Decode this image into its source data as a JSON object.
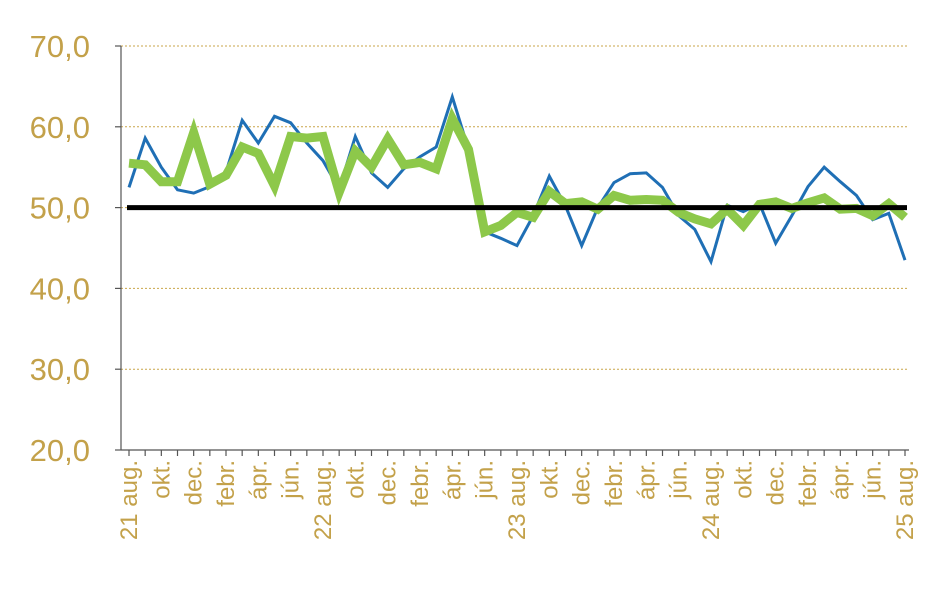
{
  "chart_data": {
    "type": "line",
    "title": "",
    "xlabel": "",
    "ylabel": "",
    "ylim": [
      20,
      70
    ],
    "yticks": [
      "20,0",
      "30,0",
      "40,0",
      "50,0",
      "60,0",
      "70,0"
    ],
    "ytick_values": [
      20,
      30,
      40,
      50,
      60,
      70
    ],
    "grid": true,
    "legend": "none",
    "x_labels": [
      {
        "i": 0,
        "label": "21 aug."
      },
      {
        "i": 2,
        "label": "okt."
      },
      {
        "i": 4,
        "label": "dec."
      },
      {
        "i": 6,
        "label": "febr."
      },
      {
        "i": 8,
        "label": "ápr."
      },
      {
        "i": 10,
        "label": "jún."
      },
      {
        "i": 12,
        "label": "22 aug."
      },
      {
        "i": 14,
        "label": "okt."
      },
      {
        "i": 16,
        "label": "dec."
      },
      {
        "i": 18,
        "label": "febr."
      },
      {
        "i": 20,
        "label": "ápr."
      },
      {
        "i": 22,
        "label": "jún."
      },
      {
        "i": 24,
        "label": "23 aug."
      },
      {
        "i": 26,
        "label": "okt."
      },
      {
        "i": 28,
        "label": "dec."
      },
      {
        "i": 30,
        "label": "febr."
      },
      {
        "i": 32,
        "label": "ápr."
      },
      {
        "i": 34,
        "label": "jún."
      },
      {
        "i": 36,
        "label": "24 aug."
      },
      {
        "i": 38,
        "label": "okt."
      },
      {
        "i": 40,
        "label": "dec."
      },
      {
        "i": 42,
        "label": "febr."
      },
      {
        "i": 44,
        "label": "ápr."
      },
      {
        "i": 46,
        "label": "jún."
      },
      {
        "i": 48,
        "label": "25 aug."
      }
    ],
    "series": [
      {
        "color": "#1f6fb5",
        "values": [
          52.5,
          58.6,
          55.0,
          52.2,
          51.8,
          52.6,
          54.4,
          60.8,
          58.0,
          61.3,
          60.5,
          58.0,
          55.8,
          52.3,
          58.8,
          54.3,
          52.5,
          54.8,
          56.3,
          57.5,
          63.7,
          57.2,
          47.0,
          46.2,
          45.3,
          49.0,
          53.9,
          50.2,
          45.3,
          50.0,
          53.1,
          54.2,
          54.3,
          52.5,
          49.0,
          47.3,
          43.3,
          50.3,
          49.5,
          50.5,
          45.6,
          49.0,
          52.6,
          55.0,
          53.2,
          51.5,
          48.5,
          49.3,
          43.5
        ]
      },
      {
        "color": "#8dc84a",
        "values": [
          55.5,
          55.3,
          53.2,
          53.2,
          59.3,
          52.9,
          54.0,
          57.5,
          56.7,
          52.7,
          58.8,
          58.6,
          58.8,
          51.9,
          57.0,
          55.0,
          58.5,
          55.3,
          55.6,
          54.8,
          61.0,
          57.2,
          47.0,
          47.8,
          49.4,
          48.8,
          52.0,
          50.5,
          50.7,
          49.8,
          51.5,
          50.9,
          51.0,
          50.9,
          49.4,
          48.6,
          48.0,
          49.8,
          47.8,
          50.4,
          50.7,
          49.9,
          50.6,
          51.2,
          49.8,
          49.9,
          49.0,
          50.5,
          48.8
        ]
      }
    ],
    "reference_line": {
      "value": 50,
      "color": "#000000"
    }
  }
}
